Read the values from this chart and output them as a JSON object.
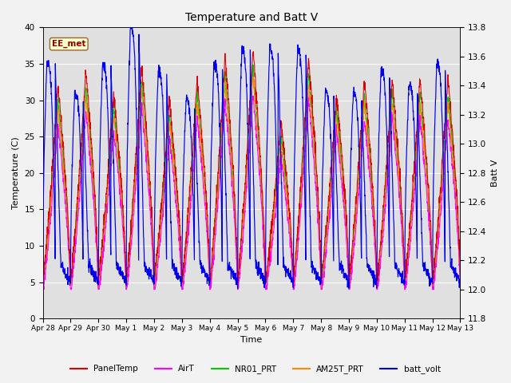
{
  "title": "Temperature and Batt V",
  "xlabel": "Time",
  "ylabel_left": "Temperature (C)",
  "ylabel_right": "Batt V",
  "annotation": "EE_met",
  "ylim_left": [
    0,
    40
  ],
  "ylim_right": [
    11.8,
    13.8
  ],
  "yticks_left": [
    0,
    5,
    10,
    15,
    20,
    25,
    30,
    35,
    40
  ],
  "yticks_right": [
    11.8,
    12.0,
    12.2,
    12.4,
    12.6,
    12.8,
    13.0,
    13.2,
    13.4,
    13.6,
    13.8
  ],
  "xtick_labels": [
    "Apr 28",
    "Apr 29",
    "Apr 30",
    "May 1",
    "May 2",
    "May 3",
    "May 4",
    "May 5",
    "May 6",
    "May 7",
    "May 8",
    "May 9",
    "May 10",
    "May 11",
    "May 12",
    "May 13"
  ],
  "colors": {
    "PanelTemp": "#dd0000",
    "AirT": "#ff00ff",
    "NR01_PRT": "#00cc00",
    "AM25T_PRT": "#ff8800",
    "batt_volt": "#0000ee"
  },
  "legend_labels": [
    "PanelTemp",
    "AirT",
    "NR01_PRT",
    "AM25T_PRT",
    "batt_volt"
  ],
  "plot_bg": "#e0e0e0",
  "fig_bg": "#f2f2f2",
  "grid_color": "#ffffff",
  "n_days": 15,
  "pts_per_day": 144,
  "daily_peaks": [
    32,
    34,
    31,
    35,
    30,
    33,
    36,
    37,
    27,
    36,
    31,
    33,
    33,
    33,
    33,
    32
  ],
  "daily_batt_peaks": [
    13.55,
    13.35,
    13.55,
    13.8,
    13.5,
    13.3,
    13.55,
    13.65,
    13.65,
    13.65,
    13.35,
    13.35,
    13.5,
    13.4,
    13.55,
    13.55
  ]
}
